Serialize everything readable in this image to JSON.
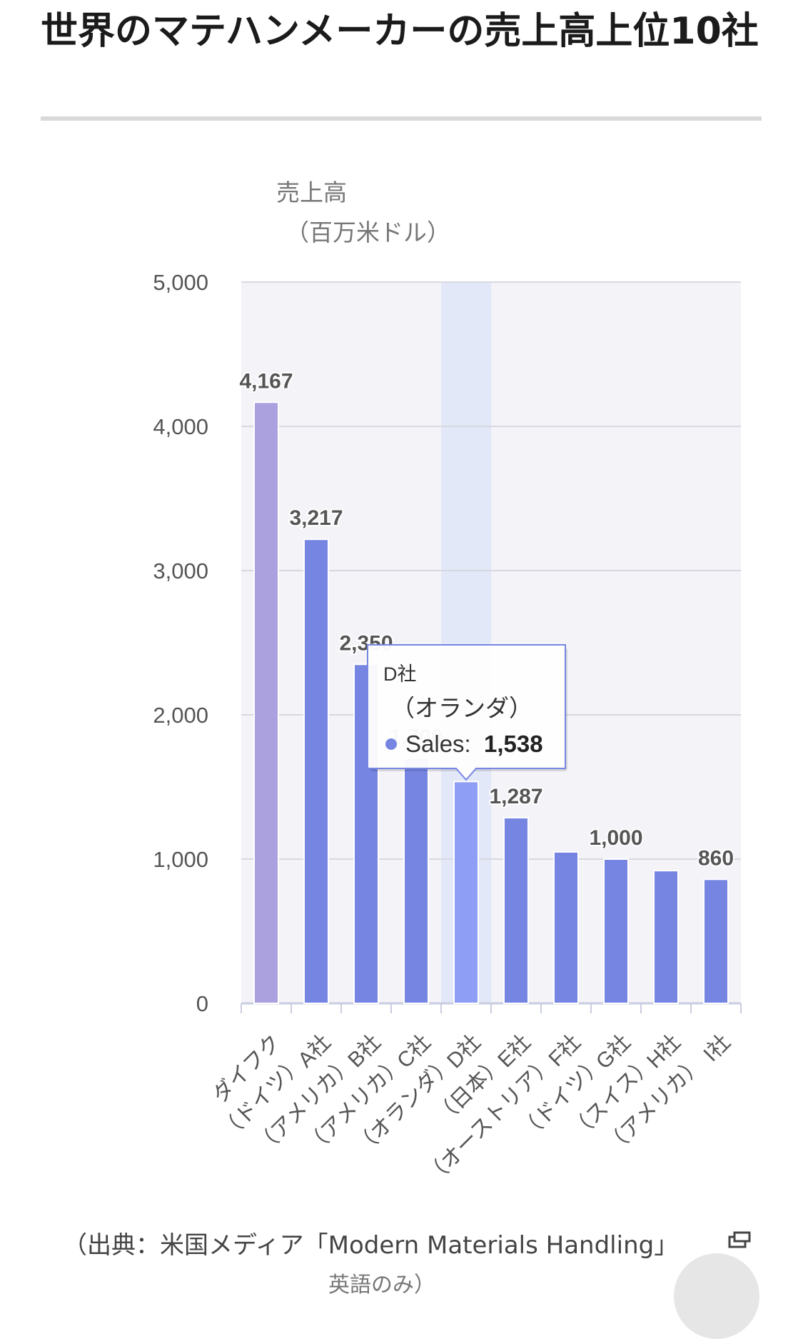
{
  "page": {
    "title": "世界のマテハンメーカーの売上高上位10社",
    "source": "（出典：米国メディア「Modern Materials Handling」",
    "source_sub": "英語のみ）",
    "icons": [
      "external-link-icon"
    ]
  },
  "colors": {
    "bar": "#7785e2",
    "bar_first": "#aba1df",
    "bar_hover": "#8f9ef5",
    "plot_bg": "#f3f3f8",
    "hover_band": "#e2e8f7",
    "grid": "#d8d8e0",
    "axis": "#c9cde0",
    "tooltip_border": "#7785e2"
  },
  "chart_data": {
    "type": "bar",
    "title": "",
    "ylabel": "売上高\n（百万米ドル）",
    "xlabel": "",
    "ylim": [
      0,
      5000
    ],
    "yticks": [
      "0",
      "1,000",
      "2,000",
      "3,000",
      "4,000",
      "5,000"
    ],
    "grid": true,
    "categories": [
      "ダイフク",
      "A社\n（ドイツ）",
      "B社\n（アメリカ）",
      "C社\n（アメリカ）",
      "D社\n（オランダ）",
      "E社\n（日本）",
      "F社\n（オーストリア）",
      "G社\n（ドイツ）",
      "H社\n（スイス）",
      "I社\n（アメリカ）"
    ],
    "series": [
      {
        "name": "Sales",
        "values": [
          4167,
          3217,
          2350,
          1700,
          1538,
          1287,
          1050,
          1000,
          920,
          860
        ]
      }
    ],
    "data_labels": [
      "4,167",
      "3,217",
      "2,350",
      "1,700",
      "",
      "1,287",
      "",
      "1,000",
      "",
      "860"
    ],
    "highlight_index": 4,
    "tooltip": {
      "line1": "D社",
      "line2": "（オランダ）",
      "series_label": "Sales:",
      "value": "1,538"
    }
  }
}
